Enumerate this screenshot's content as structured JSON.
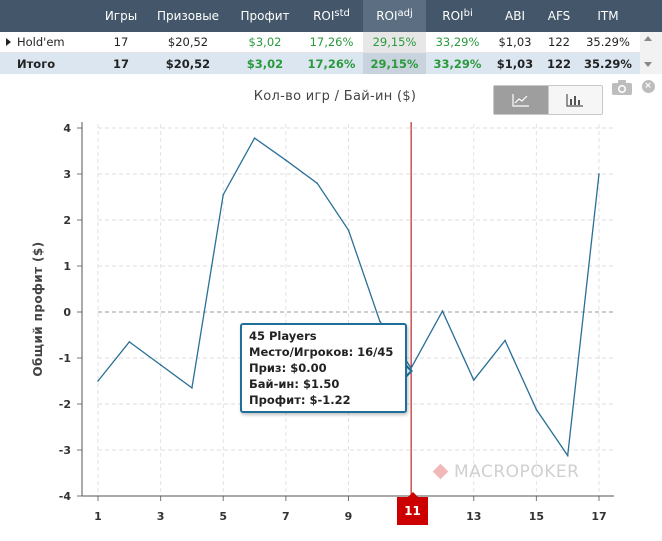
{
  "stats_table": {
    "headers": {
      "name": "",
      "games": "Игры",
      "prize": "Призовые",
      "profit": "Профит",
      "roi_std_base": "ROI",
      "roi_std_sup": "std",
      "roi_adj_base": "ROI",
      "roi_adj_sup": "adj",
      "roi_bi_base": "ROI",
      "roi_bi_sup": "bi",
      "abi": "ABI",
      "afs": "AFS",
      "itm": "ITM"
    },
    "rows": [
      {
        "name": "Hold'em",
        "games": "17",
        "prize": "$20,52",
        "profit": "$3,02",
        "roi_std": "17,26%",
        "roi_adj": "29,15%",
        "roi_bi": "33,29%",
        "abi": "$1,03",
        "afs": "122",
        "itm": "35.29%"
      },
      {
        "name": "Итого",
        "games": "17",
        "prize": "$20,52",
        "profit": "$3,02",
        "roi_std": "17,26%",
        "roi_adj": "29,15%",
        "roi_bi": "33,29%",
        "abi": "$1,03",
        "afs": "122",
        "itm": "35.29%"
      }
    ],
    "positive_color": "#2a9a3c"
  },
  "chart_controls": {
    "line_view_icon": "line-chart-icon",
    "bar_view_icon": "bar-chart-icon",
    "active_view": "line",
    "camera_icon": "camera-icon",
    "close_icon": "close-icon",
    "close_glyph": "×"
  },
  "chart_data": {
    "type": "line",
    "title": "Кол-во игр / Бай-ин ($)",
    "ylabel": "Общий профит ($)",
    "xlabel": "",
    "x": [
      1,
      2,
      3,
      4,
      5,
      6,
      7,
      8,
      9,
      10,
      11,
      12,
      13,
      14,
      15,
      16,
      17
    ],
    "series": [
      {
        "values": [
          -1.5,
          -0.65,
          -1.15,
          -1.65,
          2.55,
          3.78,
          3.3,
          2.8,
          1.78,
          -0.2,
          -1.22,
          0.02,
          -1.48,
          -0.62,
          -2.12,
          -3.12,
          3.0
        ],
        "color": "#2a6f97"
      }
    ],
    "xlim": [
      1,
      17
    ],
    "ylim": [
      -4,
      4
    ],
    "x_ticks": [
      1,
      3,
      5,
      7,
      9,
      11,
      13,
      15,
      17
    ],
    "y_ticks": [
      4,
      3,
      2,
      1,
      0,
      -1,
      -2,
      -3,
      -4
    ],
    "grid": true,
    "zero_line": true,
    "highlighted_x": 11,
    "crosshair_color": "#b00000",
    "tooltip": {
      "title": "45 Players",
      "lines": [
        "Место/Игроков: 16/45",
        "Приз: $0.00",
        "Бай-ин: $1.50",
        "Профит: $-1.22"
      ]
    }
  },
  "watermark": {
    "text": "MACROPOKER"
  }
}
